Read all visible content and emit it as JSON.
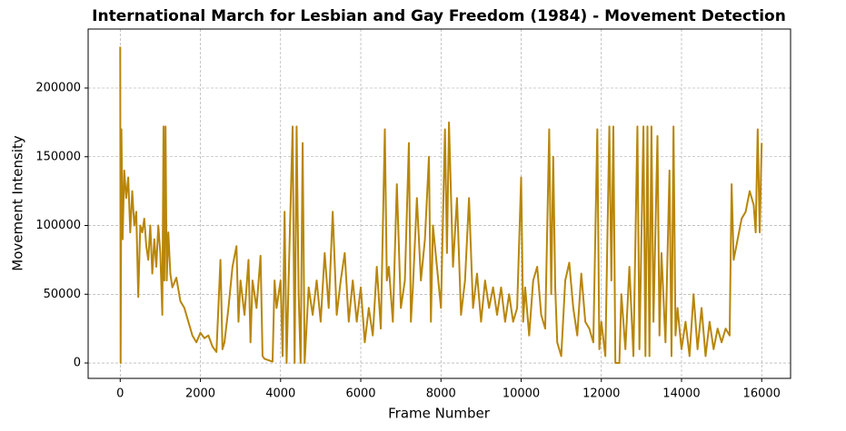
{
  "chart_data": {
    "type": "line",
    "title": "International March for Lesbian and Gay Freedom (1984) - Movement Detection",
    "x_label": "Frame Number",
    "y_label": "Movement Intensity",
    "xlim": [
      -800,
      16720
    ],
    "ylim": [
      -11200,
      242900
    ],
    "xticks": [
      0,
      2000,
      4000,
      6000,
      8000,
      10000,
      12000,
      14000,
      16000
    ],
    "yticks": [
      0,
      50000,
      100000,
      150000,
      200000
    ],
    "grid": true,
    "x": [
      0,
      10,
      30,
      60,
      100,
      150,
      200,
      250,
      300,
      350,
      400,
      450,
      500,
      550,
      600,
      650,
      700,
      750,
      800,
      850,
      900,
      950,
      1000,
      1050,
      1080,
      1100,
      1130,
      1160,
      1200,
      1250,
      1300,
      1400,
      1500,
      1600,
      1700,
      1800,
      1900,
      2000,
      2100,
      2200,
      2300,
      2400,
      2500,
      2550,
      2600,
      2700,
      2800,
      2900,
      2950,
      3000,
      3100,
      3200,
      3250,
      3300,
      3400,
      3500,
      3550,
      3600,
      3700,
      3800,
      3850,
      3900,
      4000,
      4050,
      4100,
      4150,
      4200,
      4300,
      4350,
      4400,
      4450,
      4500,
      4550,
      4600,
      4700,
      4800,
      4900,
      5000,
      5100,
      5200,
      5300,
      5400,
      5500,
      5600,
      5700,
      5800,
      5900,
      6000,
      6100,
      6200,
      6300,
      6400,
      6500,
      6600,
      6650,
      6700,
      6800,
      6900,
      7000,
      7100,
      7200,
      7250,
      7300,
      7400,
      7500,
      7600,
      7700,
      7750,
      7800,
      7900,
      8000,
      8100,
      8150,
      8200,
      8300,
      8400,
      8500,
      8600,
      8700,
      8800,
      8900,
      9000,
      9100,
      9200,
      9300,
      9400,
      9500,
      9600,
      9700,
      9800,
      9900,
      10000,
      10050,
      10100,
      10200,
      10300,
      10400,
      10500,
      10600,
      10700,
      10750,
      10800,
      10850,
      10900,
      11000,
      11100,
      11200,
      11300,
      11400,
      11500,
      11600,
      11700,
      11800,
      11900,
      11950,
      12000,
      12100,
      12200,
      12250,
      12300,
      12350,
      12450,
      12500,
      12600,
      12700,
      12800,
      12900,
      12950,
      13050,
      13100,
      13150,
      13200,
      13250,
      13300,
      13400,
      13450,
      13500,
      13600,
      13700,
      13750,
      13800,
      13850,
      13900,
      14000,
      14100,
      14200,
      14300,
      14400,
      14500,
      14600,
      14700,
      14800,
      14900,
      15000,
      15100,
      15200,
      15250,
      15300,
      15400,
      15500,
      15600,
      15700,
      15800,
      15850,
      15900,
      15950,
      16000
    ],
    "series": [
      {
        "color": "#b8860b",
        "values": [
          230000,
          0,
          170000,
          90000,
          140000,
          120000,
          135000,
          95000,
          125000,
          100000,
          110000,
          48000,
          100000,
          95000,
          105000,
          85000,
          75000,
          100000,
          65000,
          90000,
          70000,
          100000,
          80000,
          35000,
          172000,
          60000,
          172000,
          60000,
          95000,
          65000,
          55000,
          62000,
          45000,
          40000,
          30000,
          20000,
          15000,
          22000,
          18000,
          20000,
          12000,
          8000,
          75000,
          10000,
          15000,
          40000,
          70000,
          85000,
          30000,
          60000,
          35000,
          75000,
          15000,
          60000,
          40000,
          78000,
          5000,
          3000,
          2000,
          1000,
          60000,
          40000,
          60000,
          5000,
          110000,
          0,
          60000,
          172000,
          0,
          172000,
          50000,
          0,
          160000,
          0,
          55000,
          35000,
          60000,
          30000,
          80000,
          40000,
          110000,
          35000,
          60000,
          80000,
          30000,
          60000,
          30000,
          55000,
          15000,
          40000,
          20000,
          70000,
          25000,
          170000,
          60000,
          70000,
          30000,
          130000,
          40000,
          60000,
          160000,
          30000,
          55000,
          120000,
          60000,
          90000,
          150000,
          30000,
          100000,
          70000,
          40000,
          170000,
          80000,
          175000,
          70000,
          120000,
          35000,
          60000,
          120000,
          40000,
          65000,
          30000,
          60000,
          40000,
          55000,
          35000,
          55000,
          30000,
          50000,
          30000,
          40000,
          135000,
          30000,
          55000,
          20000,
          60000,
          70000,
          35000,
          25000,
          170000,
          50000,
          150000,
          55000,
          15000,
          5000,
          60000,
          73000,
          40000,
          20000,
          65000,
          30000,
          25000,
          15000,
          170000,
          10000,
          30000,
          5000,
          172000,
          60000,
          172000,
          0,
          0,
          50000,
          10000,
          70000,
          5000,
          172000,
          10000,
          172000,
          5000,
          172000,
          5000,
          172000,
          30000,
          165000,
          20000,
          80000,
          15000,
          140000,
          5000,
          172000,
          20000,
          40000,
          10000,
          30000,
          5000,
          50000,
          10000,
          40000,
          5000,
          30000,
          10000,
          25000,
          15000,
          25000,
          20000,
          130000,
          75000,
          90000,
          105000,
          110000,
          125000,
          115000,
          95000,
          170000,
          95000,
          160000
        ]
      }
    ]
  }
}
